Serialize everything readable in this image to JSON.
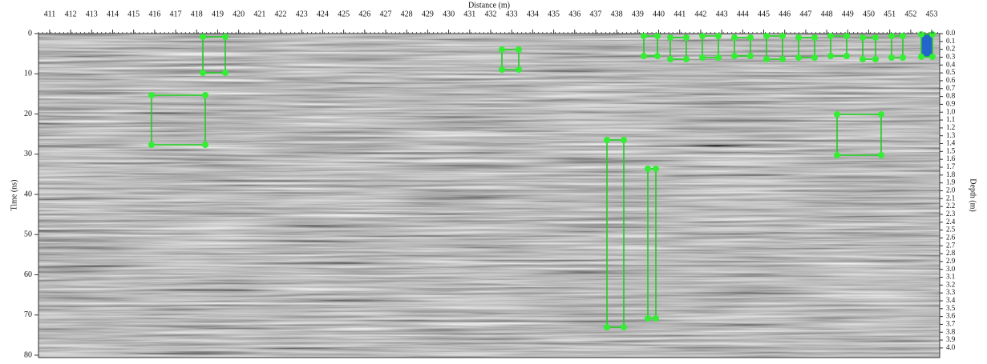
{
  "x_axis": {
    "label": "Distance (m)",
    "lim": [
      410.47,
      453.38
    ],
    "ticks": [
      411,
      412,
      413,
      414,
      415,
      416,
      417,
      418,
      419,
      420,
      421,
      422,
      423,
      424,
      425,
      426,
      427,
      428,
      429,
      430,
      431,
      432,
      433,
      434,
      435,
      436,
      437,
      438,
      439,
      440,
      441,
      442,
      443,
      444,
      445,
      446,
      447,
      448,
      449,
      450,
      451,
      452,
      453
    ]
  },
  "y_axis": {
    "label": "Time (ns)",
    "lim": [
      0,
      80.6
    ],
    "ticks": [
      0,
      10,
      20,
      30,
      40,
      50,
      60,
      70,
      80
    ]
  },
  "y2_axis": {
    "label": "Depth (m)",
    "lim": [
      0,
      4.123
    ],
    "ticks": [
      {
        "value": 0,
        "label": "0.0"
      },
      0.1,
      0.2,
      0.3,
      0.4,
      0.5,
      0.6,
      0.7,
      0.8,
      0.9,
      {
        "value": 1,
        "label": "1.0"
      },
      1.1,
      1.2,
      1.3,
      1.4,
      1.5,
      1.6,
      1.7,
      1.8,
      1.9,
      {
        "value": 2,
        "label": "2.0"
      },
      2.1,
      2.2,
      2.3,
      2.4,
      2.5,
      2.6,
      2.7,
      2.8,
      2.9,
      {
        "value": 3,
        "label": "3.0"
      },
      3.1,
      3.2,
      3.3,
      3.4,
      3.5,
      3.6,
      3.7,
      3.8,
      3.9,
      {
        "value": 4,
        "label": "4.0"
      }
    ]
  }
}
